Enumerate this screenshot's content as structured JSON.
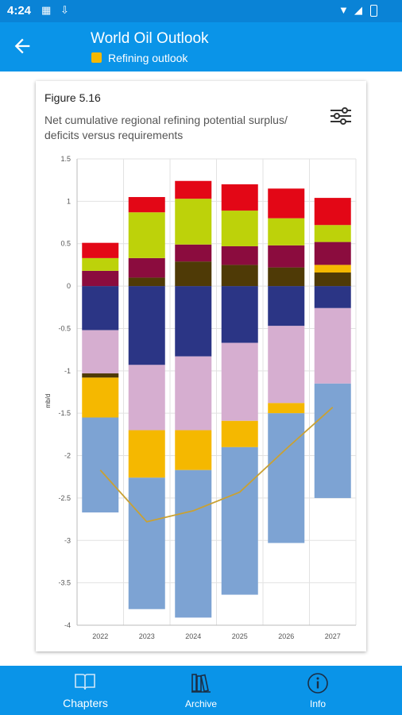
{
  "status": {
    "time": "4:24"
  },
  "appbar": {
    "title": "World Oil Outlook",
    "subtitle": "Refining outlook",
    "subtitle_chip_color": "#f5b800"
  },
  "figure": {
    "label": "Figure 5.16",
    "title": "Net cumulative regional refining potential surplus/ deficits versus requirements"
  },
  "chart_data": {
    "type": "bar",
    "stacked": true,
    "categories": [
      "2022",
      "2023",
      "2024",
      "2025",
      "2026",
      "2027"
    ],
    "ylabel": "mb/d",
    "ylim": [
      -4,
      1.5
    ],
    "yticks": [
      "1.5",
      "1",
      "0.5",
      "0",
      "-0.5",
      "-1",
      "-1.5",
      "-2",
      "-2.5",
      "-3",
      "-3.5",
      "-4"
    ],
    "grid": true,
    "series": [
      {
        "color": "#2b3585",
        "values": [
          -0.52,
          -0.93,
          -0.83,
          -0.67,
          -0.47,
          -0.26
        ]
      },
      {
        "color": "#d6aed0",
        "values": [
          -0.51,
          -0.77,
          -0.87,
          -0.92,
          -0.91,
          -0.89
        ]
      },
      {
        "color": "#4f3a06",
        "values": [
          -0.05,
          0,
          0,
          0,
          0,
          0
        ]
      },
      {
        "color": "#f5b800",
        "values": [
          -0.47,
          -0.56,
          -0.47,
          -0.31,
          -0.12,
          0
        ]
      },
      {
        "color": "#7da3d3",
        "values": [
          -1.12,
          -1.55,
          -1.74,
          -1.74,
          -1.53,
          -1.35
        ]
      },
      {
        "color": "#4f3a06",
        "values": [
          0,
          0.1,
          0.29,
          0.25,
          0.22,
          0.16
        ]
      },
      {
        "color": "#f5b800",
        "values": [
          0,
          0,
          0,
          0,
          0,
          0.09
        ]
      },
      {
        "color": "#8b0c3e",
        "values": [
          0.18,
          0.23,
          0.2,
          0.22,
          0.26,
          0.27
        ]
      },
      {
        "color": "#bdd20a",
        "values": [
          0.15,
          0.54,
          0.54,
          0.42,
          0.32,
          0.2
        ]
      },
      {
        "color": "#e30716",
        "values": [
          0.18,
          0.18,
          0.21,
          0.31,
          0.35,
          0.32
        ]
      }
    ],
    "line": {
      "color": "#c9a133",
      "values": [
        -2.17,
        -2.78,
        -2.65,
        -2.43,
        -1.92,
        -1.43
      ]
    }
  },
  "nav": {
    "items": [
      {
        "label": "Chapters"
      },
      {
        "label": "Archive"
      },
      {
        "label": "Info"
      }
    ]
  }
}
